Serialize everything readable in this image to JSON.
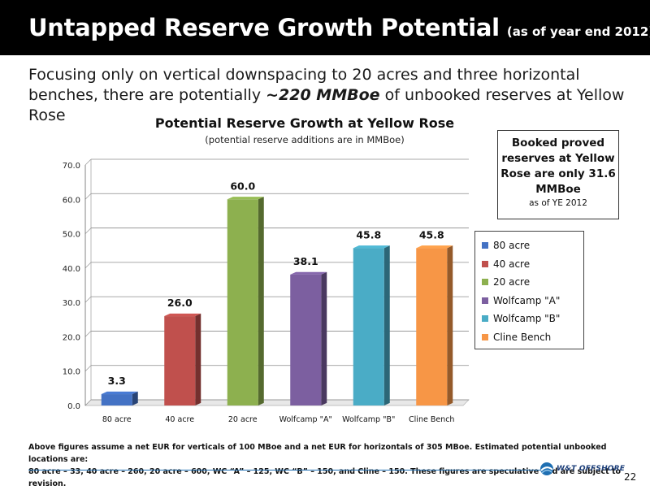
{
  "header": {
    "title": "Untapped Reserve Growth Potential",
    "subtitle": "(as of year end 2012)"
  },
  "intro": {
    "text_before": "Focusing only on vertical downspacing to 20 acres and three horizontal benches, there are potentially ",
    "emphasis": "~220 MMBoe",
    "text_after": " of unbooked reserves at Yellow Rose"
  },
  "callout": {
    "main": "Booked proved reserves at Yellow Rose are only 31.6 MMBoe",
    "sub": "as of YE 2012"
  },
  "chart_data": {
    "type": "bar",
    "title": "Potential Reserve Growth at Yellow Rose",
    "subtitle": "(potential reserve additions are in MMBoe)",
    "xlabel": "",
    "ylabel": "",
    "categories": [
      "80 acre",
      "40 acre",
      "20 acre",
      "Wolfcamp \"A\"",
      "Wolfcamp \"B\"",
      "Cline Bench"
    ],
    "values": [
      3.3,
      26.0,
      60.0,
      38.1,
      45.8,
      45.8
    ],
    "value_labels": [
      "3.3",
      "26.0",
      "60.0",
      "38.1",
      "45.8",
      "45.8"
    ],
    "colors": [
      "#4472c4",
      "#c0504d",
      "#8db04f",
      "#7c5fa0",
      "#4aacc6",
      "#f79646"
    ],
    "ylim": [
      0,
      70
    ],
    "yticks": [
      "0.0",
      "10.0",
      "20.0",
      "30.0",
      "40.0",
      "50.0",
      "60.0",
      "70.0"
    ],
    "grid": true,
    "legend_position": "right",
    "legend": [
      "80 acre",
      "40 acre",
      "20 acre",
      "Wolfcamp \"A\"",
      "Wolfcamp \"B\"",
      "Cline Bench"
    ]
  },
  "footnote": {
    "line1": "Above figures assume a net EUR for verticals of 100 MBoe and a net EUR for horizontals of 305 MBoe.  Estimated potential unbooked locations are:",
    "line2": "80 acre – 33, 40 acre – 260, 20 acre – 600, WC “A” – 125, WC “B” – 150, and Cline – 150.  These figures are speculative and are subject to revision."
  },
  "branding": {
    "logo_text": "W&T OFFSHORE",
    "logo_icon": "wt-offshore-logo-icon"
  },
  "page_number": "22"
}
